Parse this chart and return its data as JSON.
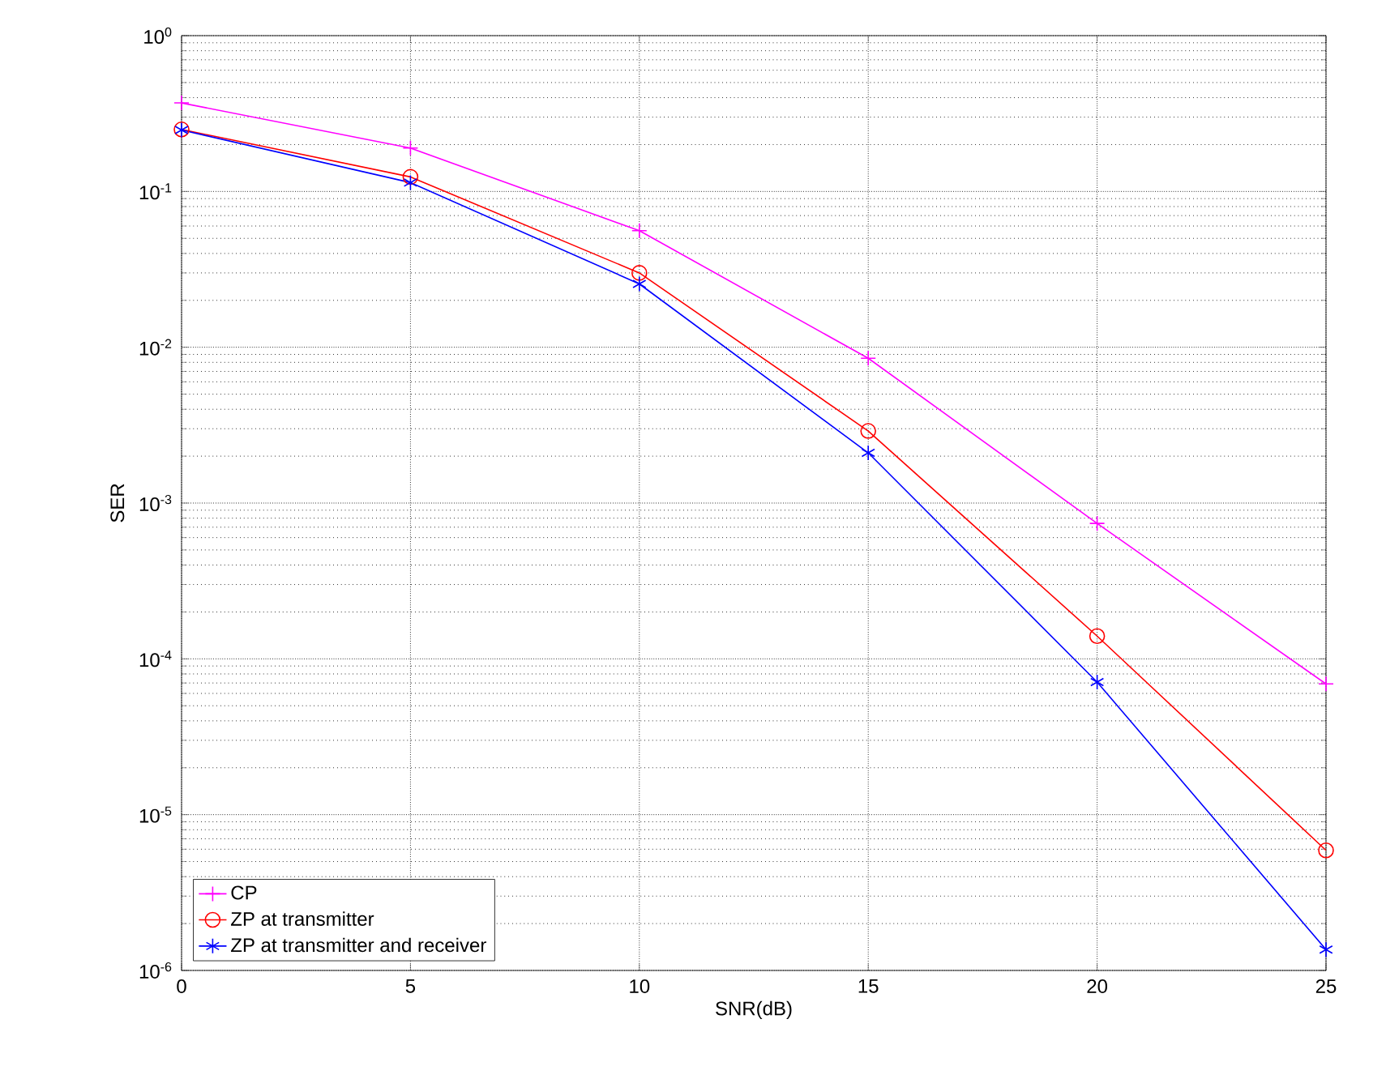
{
  "chart_data": {
    "type": "line",
    "xlabel": "SNR(dB)",
    "ylabel": "SER",
    "log": "y",
    "grid": true,
    "legend": "bottom left",
    "x": [
      0,
      5,
      10,
      15,
      20,
      25
    ],
    "xlim": [
      0,
      25
    ],
    "xticks": [
      0,
      5,
      10,
      15,
      20,
      25
    ],
    "ylim": [
      1e-06,
      1
    ],
    "yticks": [
      {
        "value": 1e-06,
        "label": "10$^{-6}$"
      },
      {
        "value": 1e-05,
        "label": "10$^{-5}$"
      },
      {
        "value": 0.0001,
        "label": "10$^{-4}$"
      },
      {
        "value": 0.001,
        "label": "10$^{-3}$"
      },
      {
        "value": 0.01,
        "label": "10$^{-2}$"
      },
      {
        "value": 0.1,
        "label": "10$^{-1}$"
      },
      {
        "value": 1,
        "label": "10$^{0}$"
      }
    ],
    "series": [
      {
        "name": "CP",
        "color": "#ff00ff",
        "marker": "cross",
        "values": [
          0.37,
          0.19,
          0.056,
          0.0085,
          0.00074,
          6.9e-05
        ]
      },
      {
        "name": "ZP at transmitter",
        "color": "#ff0000",
        "marker": "circle",
        "values": [
          0.25,
          0.124,
          0.03,
          0.0029,
          0.00014,
          5.9e-06
        ]
      },
      {
        "name": "ZP at transmitter and receiver",
        "color": "#0000ff",
        "marker": "cross",
        "values": [
          0.248,
          0.114,
          0.0255,
          0.0021,
          7.1e-05,
          1.36e-06
        ]
      }
    ]
  }
}
